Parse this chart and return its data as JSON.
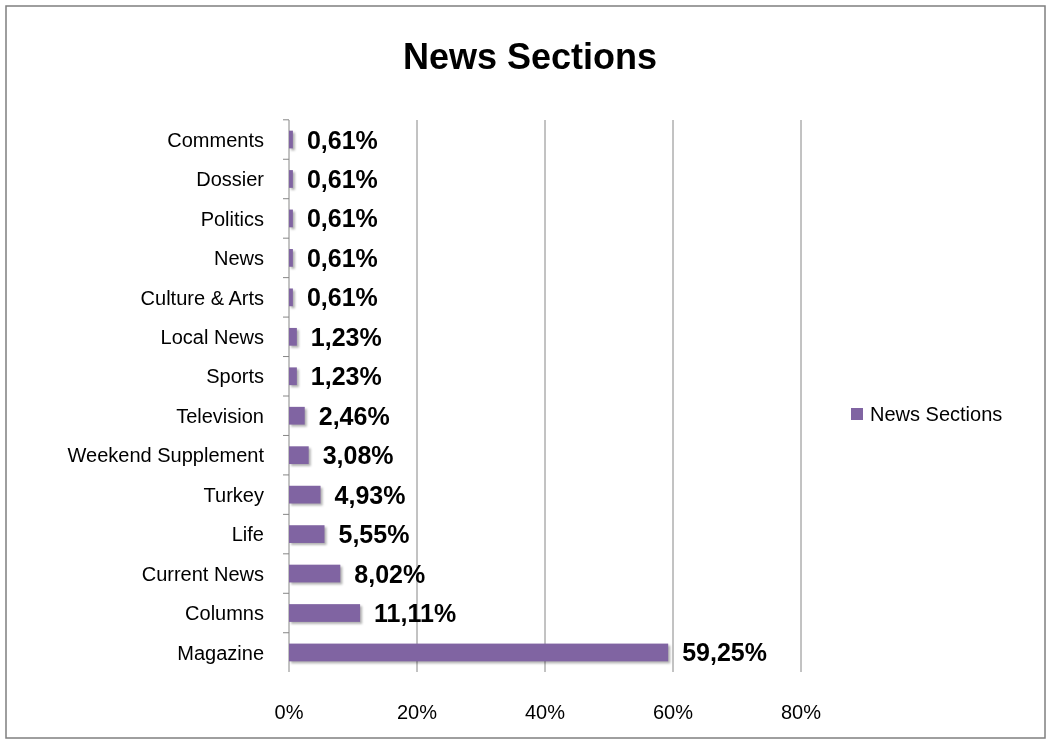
{
  "chart_data": {
    "type": "bar",
    "orientation": "horizontal",
    "title": "News Sections",
    "categories": [
      "Comments",
      "Dossier",
      "Politics",
      "News",
      "Culture & Arts",
      "Local News",
      "Sports",
      "Television",
      "Weekend Supplement",
      "Turkey",
      "Life",
      "Current News",
      "Columns",
      "Magazine"
    ],
    "series": [
      {
        "name": "News Sections",
        "color": "#8064a2",
        "values": [
          0.61,
          0.61,
          0.61,
          0.61,
          0.61,
          1.23,
          1.23,
          2.46,
          3.08,
          4.93,
          5.55,
          8.02,
          11.11,
          59.25
        ],
        "value_labels": [
          "0,61%",
          "0,61%",
          "0,61%",
          "0,61%",
          "0,61%",
          "1,23%",
          "1,23%",
          "2,46%",
          "3,08%",
          "4,93%",
          "5,55%",
          "8,02%",
          "11,11%",
          "59,25%"
        ]
      }
    ],
    "xlim": [
      0,
      80
    ],
    "xticks": [
      {
        "value": 0,
        "label": "0%"
      },
      {
        "value": 20,
        "label": "20%"
      },
      {
        "value": 40,
        "label": "40%"
      },
      {
        "value": 60,
        "label": "60%"
      },
      {
        "value": 80,
        "label": "80%"
      }
    ],
    "grid": "x",
    "legend": "right"
  }
}
